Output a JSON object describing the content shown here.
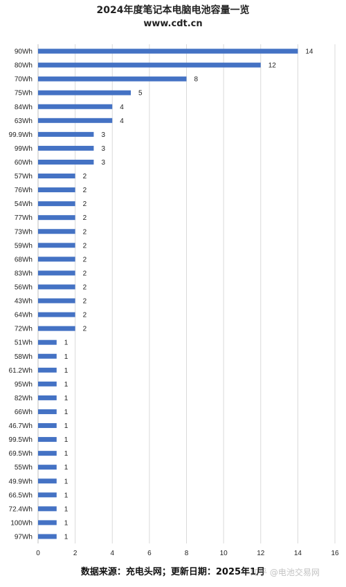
{
  "title": "2024年度笔记本电脑电池容量一览",
  "website": "www.cdt.cn",
  "source_note": "数据来源：充电头网；更新日期：2025年1月",
  "watermark": "知乎 @电池交易网",
  "colors": {
    "bar": "#4472c4",
    "grid": "#d9d9d9",
    "text": "#222222",
    "axis": "#bfbfbf"
  },
  "chart_data": {
    "type": "bar",
    "orientation": "horizontal",
    "title": "2024年度笔记本电脑电池容量一览",
    "categories": [
      "90Wh",
      "80Wh",
      "70Wh",
      "75Wh",
      "84Wh",
      "63Wh",
      "99.9Wh",
      "99Wh",
      "60Wh",
      "57Wh",
      "76Wh",
      "54Wh",
      "77Wh",
      "73Wh",
      "59Wh",
      "68Wh",
      "83Wh",
      "56Wh",
      "43Wh",
      "64Wh",
      "72Wh",
      "51Wh",
      "58Wh",
      "61.2Wh",
      "95Wh",
      "82Wh",
      "66Wh",
      "46.7Wh",
      "99.5Wh",
      "69.5Wh",
      "55Wh",
      "49.9Wh",
      "66.5Wh",
      "72.4Wh",
      "100Wh",
      "97Wh"
    ],
    "values": [
      14,
      12,
      8,
      5,
      4,
      4,
      3,
      3,
      3,
      2,
      2,
      2,
      2,
      2,
      2,
      2,
      2,
      2,
      2,
      2,
      2,
      1,
      1,
      1,
      1,
      1,
      1,
      1,
      1,
      1,
      1,
      1,
      1,
      1,
      1,
      1
    ],
    "xlim": [
      0,
      16
    ],
    "xticks": [
      0,
      2,
      4,
      6,
      8,
      10,
      12,
      14,
      16
    ],
    "grid": true,
    "data_labels": true,
    "legend": false
  }
}
